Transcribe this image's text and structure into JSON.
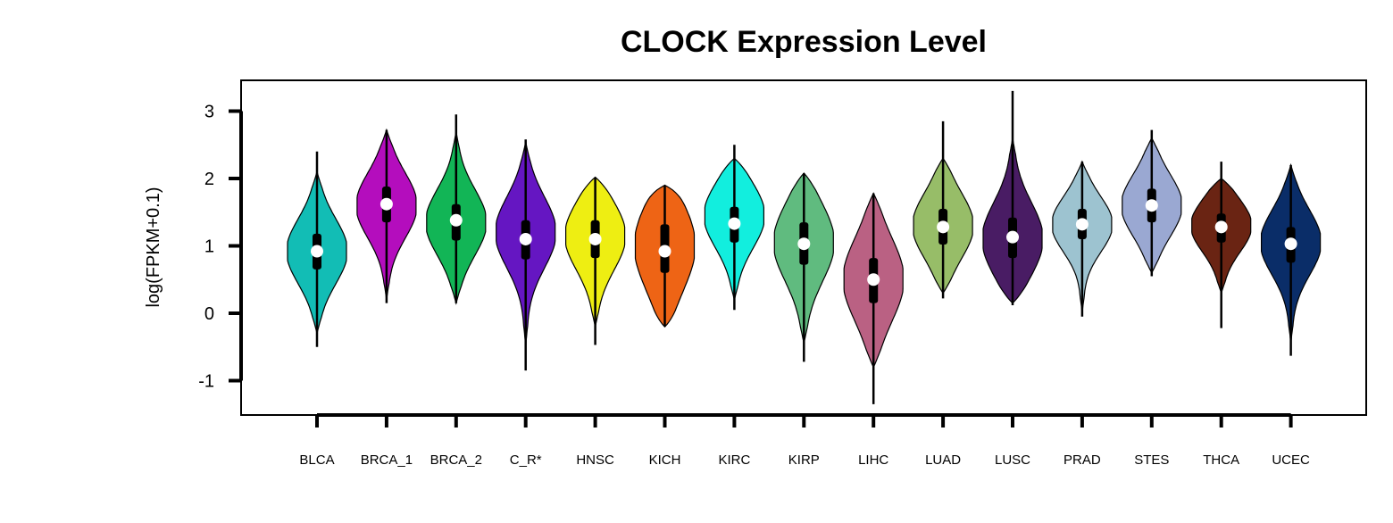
{
  "chart_data": {
    "type": "violin",
    "title": "CLOCK Expression Level",
    "xlabel": "",
    "ylabel": "log(FPKM+0.1)",
    "ylim": [
      -1.5,
      3.5
    ],
    "yticks": [
      -1,
      0,
      1,
      2,
      3
    ],
    "ytick_labels": [
      "-1",
      "0",
      "1",
      "2",
      "3"
    ],
    "grid": false,
    "legend": "none",
    "categories": [
      "BLCA",
      "BRCA_1",
      "BRCA_2",
      "C_R*",
      "HNSC",
      "KICH",
      "KIRC",
      "KIRP",
      "LIHC",
      "LUAD",
      "LUSC",
      "PRAD",
      "STES",
      "THCA",
      "UCEC"
    ],
    "colors": [
      "#12BDB5",
      "#B40DBD",
      "#12B556",
      "#6516C2",
      "#EEEE12",
      "#EE6415",
      "#12EEDE",
      "#60BB7F",
      "#BA6183",
      "#97BD68",
      "#491C64",
      "#9DC3D0",
      "#9AA8D2",
      "#6A2413",
      "#0A2D68"
    ],
    "series": [
      {
        "category": "BLCA",
        "min": -0.5,
        "q1": 0.65,
        "median": 0.92,
        "q3": 1.18,
        "max": 2.4,
        "violin_min": -0.3,
        "violin_max": 2.1,
        "mode": 0.92
      },
      {
        "category": "BRCA_1",
        "min": 0.15,
        "q1": 1.35,
        "median": 1.62,
        "q3": 1.88,
        "max": 2.72,
        "violin_min": 0.2,
        "violin_max": 2.72,
        "mode": 1.6
      },
      {
        "category": "BRCA_2",
        "min": 0.15,
        "q1": 1.08,
        "median": 1.38,
        "q3": 1.62,
        "max": 2.95,
        "violin_min": 0.15,
        "violin_max": 2.7,
        "mode": 1.35
      },
      {
        "category": "C_R*",
        "min": -0.85,
        "q1": 0.8,
        "median": 1.1,
        "q3": 1.38,
        "max": 2.58,
        "violin_min": -0.5,
        "violin_max": 2.55,
        "mode": 1.2
      },
      {
        "category": "HNSC",
        "min": -0.47,
        "q1": 0.82,
        "median": 1.1,
        "q3": 1.38,
        "max": 2.02,
        "violin_min": -0.2,
        "violin_max": 2.02,
        "mode": 1.15
      },
      {
        "category": "KICH",
        "min": -0.2,
        "q1": 0.6,
        "median": 0.92,
        "q3": 1.32,
        "max": 1.9,
        "violin_min": -0.2,
        "violin_max": 1.9,
        "mode": 1.0
      },
      {
        "category": "KIRC",
        "min": 0.05,
        "q1": 1.05,
        "median": 1.33,
        "q3": 1.58,
        "max": 2.5,
        "violin_min": 0.2,
        "violin_max": 2.3,
        "mode": 1.45
      },
      {
        "category": "KIRP",
        "min": -0.72,
        "q1": 0.72,
        "median": 1.03,
        "q3": 1.35,
        "max": 2.08,
        "violin_min": -0.45,
        "violin_max": 2.08,
        "mode": 1.05
      },
      {
        "category": "LIHC",
        "min": -1.35,
        "q1": 0.15,
        "median": 0.5,
        "q3": 0.82,
        "max": 1.78,
        "violin_min": -0.8,
        "violin_max": 1.78,
        "mode": 0.5
      },
      {
        "category": "LUAD",
        "min": 0.22,
        "q1": 1.02,
        "median": 1.28,
        "q3": 1.55,
        "max": 2.85,
        "violin_min": 0.3,
        "violin_max": 2.3,
        "mode": 1.3
      },
      {
        "category": "LUSC",
        "min": 0.12,
        "q1": 0.82,
        "median": 1.13,
        "q3": 1.42,
        "max": 3.3,
        "violin_min": 0.15,
        "violin_max": 2.6,
        "mode": 1.1
      },
      {
        "category": "PRAD",
        "min": -0.05,
        "q1": 1.1,
        "median": 1.32,
        "q3": 1.55,
        "max": 2.25,
        "violin_min": 0.0,
        "violin_max": 2.25,
        "mode": 1.32
      },
      {
        "category": "STES",
        "min": 0.55,
        "q1": 1.35,
        "median": 1.6,
        "q3": 1.85,
        "max": 2.72,
        "violin_min": 0.6,
        "violin_max": 2.6,
        "mode": 1.6
      },
      {
        "category": "THCA",
        "min": -0.22,
        "q1": 1.05,
        "median": 1.28,
        "q3": 1.48,
        "max": 2.25,
        "violin_min": 0.3,
        "violin_max": 2.0,
        "mode": 1.3
      },
      {
        "category": "UCEC",
        "min": -0.63,
        "q1": 0.75,
        "median": 1.03,
        "q3": 1.28,
        "max": 2.2,
        "violin_min": -0.45,
        "violin_max": 2.2,
        "mode": 1.05
      }
    ]
  }
}
